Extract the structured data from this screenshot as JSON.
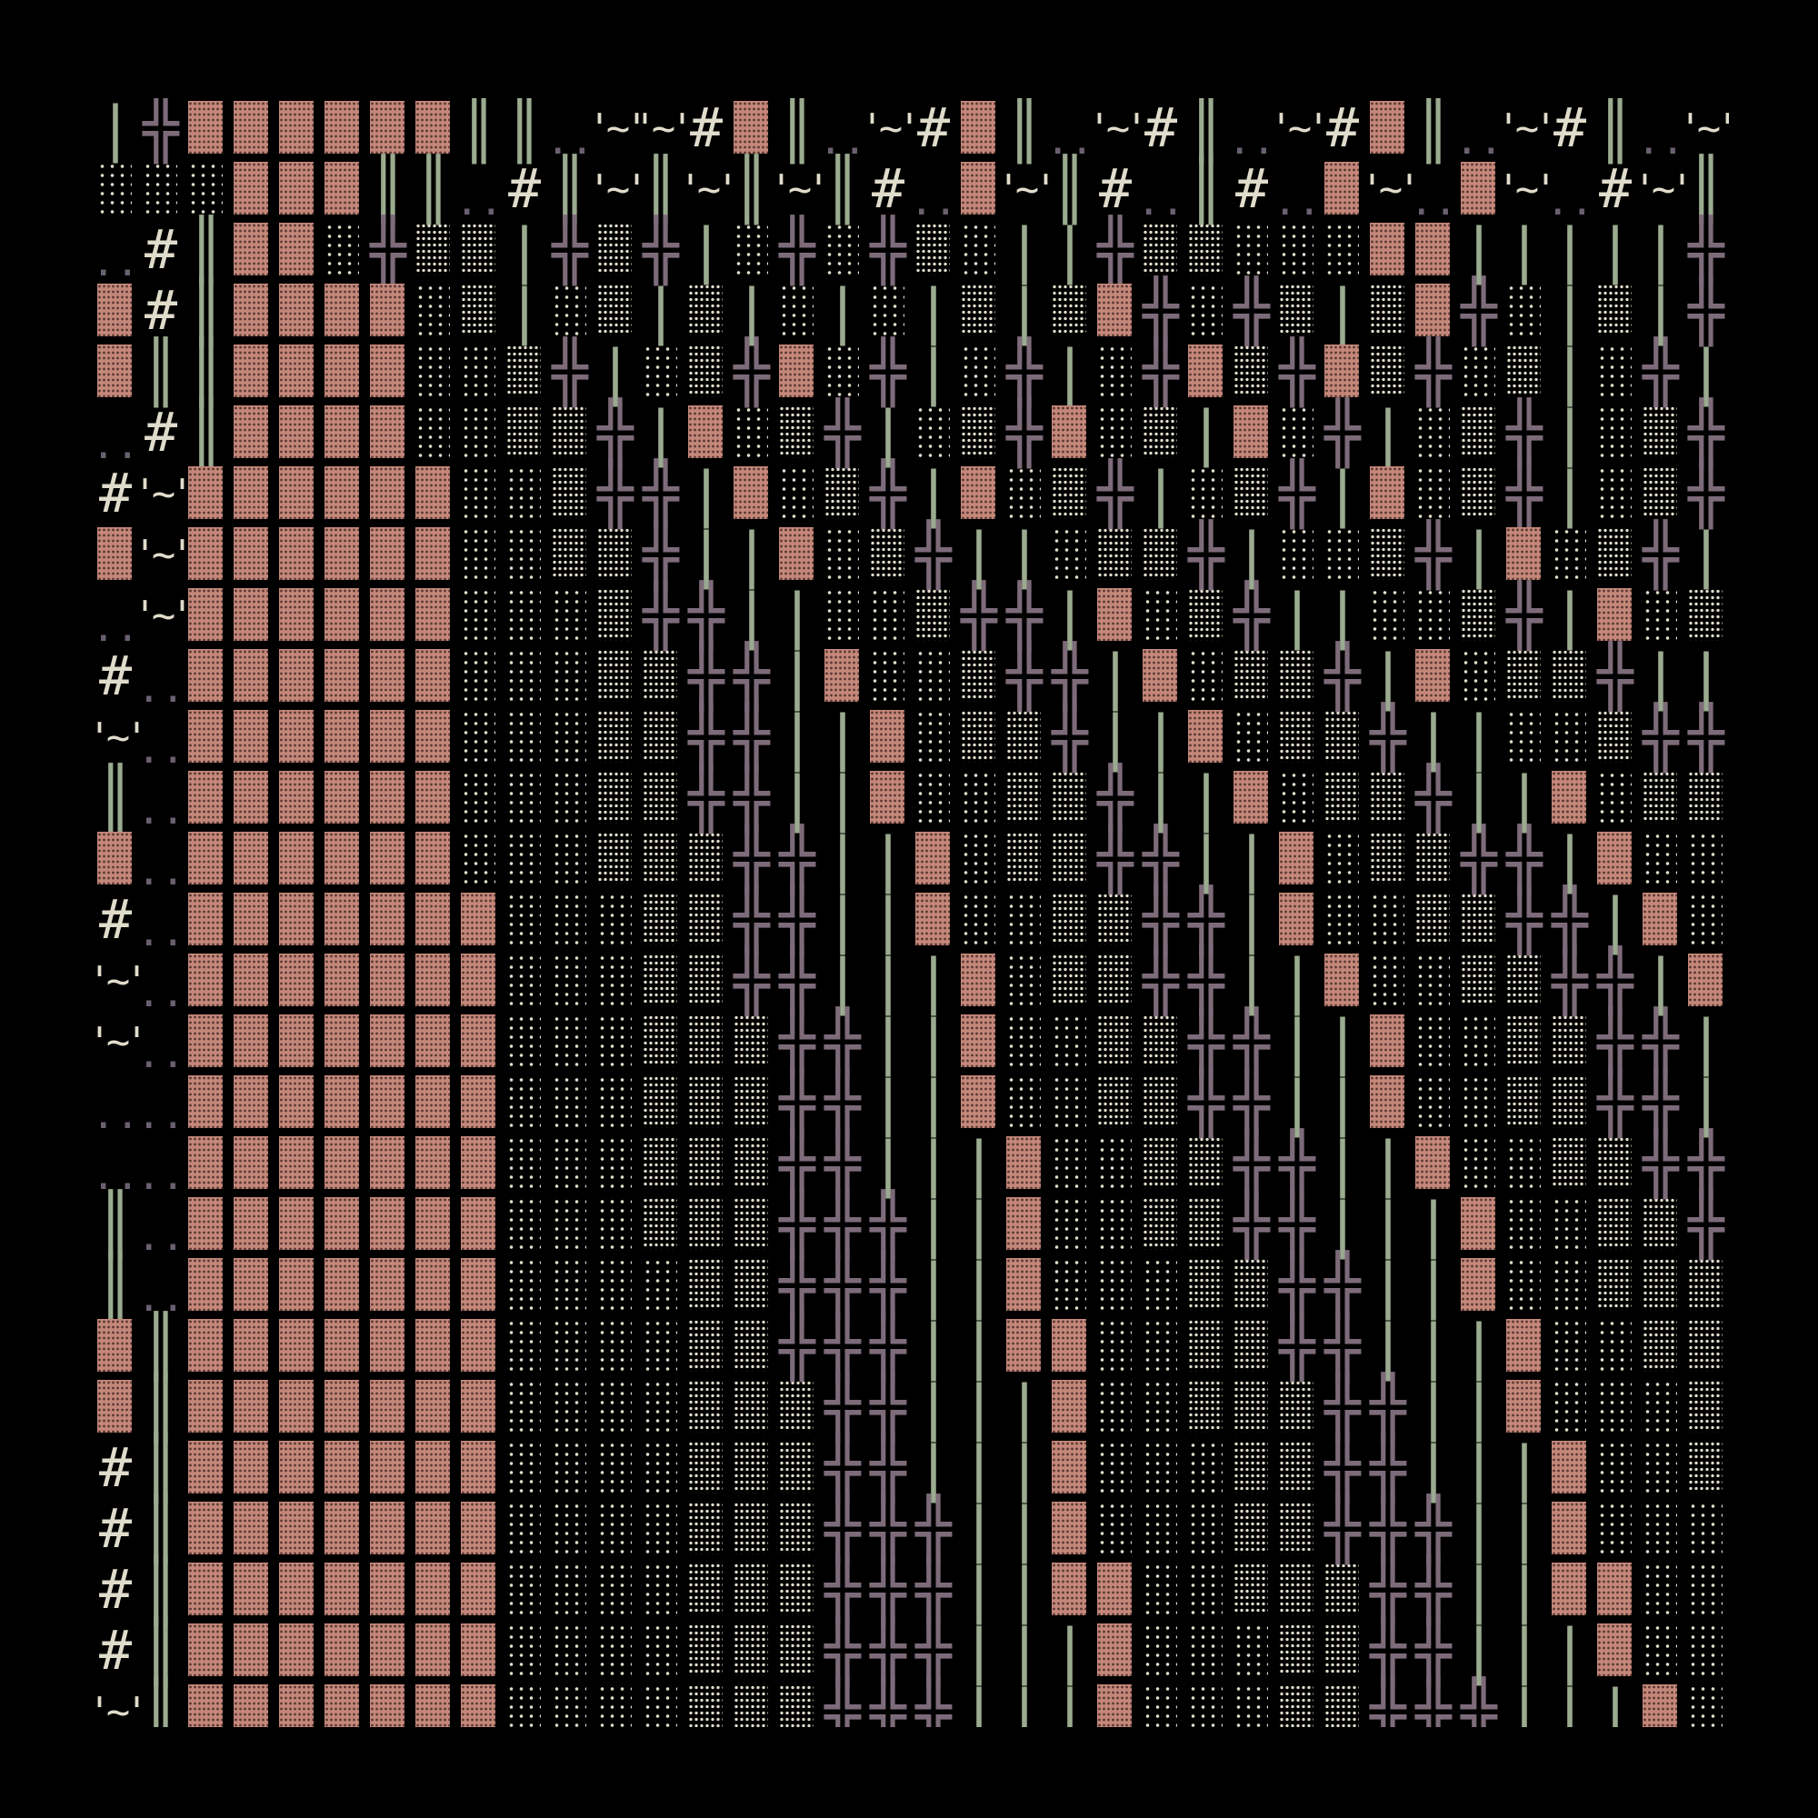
{
  "palette": {
    "background": "#000000",
    "salmon": "#c4877a",
    "green": "#9aab8f",
    "mauve": "#7d6b7a",
    "cream": "#e0dccb",
    "gray": "#6a6070"
  },
  "glyphs": {
    "S": "▓",
    "L": "░",
    "M": "▒",
    "X": "╬",
    "H": "║",
    "P": "|",
    "D": "..",
    "T": "'~'",
    "G": "#",
    "_": ""
  },
  "rows": [
    "PXSSSSSSHHDTTGSHDTGSHDTGHDTGSHDTGHDT",
    "LLLSSSHHDGHTHTHTHGDSTHGDHGDSTDSTDGTH",
    "DGHSSLXMMPXMXPLXLXMLPPXMMLLLSSPPPPPX",
    "SGHSSSSLMPLMPMPLPLPMPMSXLXMPMSXLPMPX",
    "SHHSSSSLLMXPLMXSLXPLXPLXSMXSMXLMPLXP",
    "DGHSSSSLLMMXPSLMXPLMXSLMPSLXPLMXPLMX",
    "GTSSSSSSLLMXXPSLMXPSLMXPLMXPSLMXPLMX",
    "STSSSSSSLLMMXPPSLMXPPLMMXPLLMXPSLMXP",
    "DTSSSSSSLLLMXXPPLLMXXPSLMXPPLLMXPSLM",
    "GDSSSSSSLLLMMXXPSLLMXXPSLMMXPSLMMXPP",
    "TDSSSSSSLLLMMXXPPSLMMXPPSLMMXPPLLMXX",
    "HDSSSSSSLLLMMXXPPSLLMMXPPSLMMXPPSLMM",
    "SDSSSSSSLLLMMMXXPPSLMMXXPPSLMMXXPSLL",
    "GDSSSSSSSLLLMMXXPPSLLMMXXPSLLMMXXPSL",
    "TDSSSSSSSLLLMMXXPPPSLMMXXPPSLLMMXXPS",
    "TDSSSSSSSLLLMMMXXPPSLLMMXXPPSLLMMXXP",
    "DDSSSSSSSLLLMMMXXPPSLLMMXXPPSLLMMXXP",
    "DDSSSSSSSLLLMMMXXPPPSLLMMXXPPSLLMMXX",
    "HDSSSSSSSLLLMMMXXXPPSLLMMXXPPPSLLMMX",
    "HDSSSSSSSLLLLMMXXXPPSLLLMMXXPPSLLMMM",
    "SHSSSSSSSLLLLMMXXXPPSSLLMMXXPPPSLLMM",
    "SHSSSSSSSLLLLMMMXXPPPSLLMMMXXPPSLLLM",
    "GHSSSSSSSLLLLMMMXXPPPSLLLMMXXPPPSLLM",
    "GHSSSSSSSLLLLMMMXXXPPSLLLMMXXXPPSLLL",
    "GHSSSSSSSLLLLMMMXXXPPSSLLMMMXXPPSSLL",
    "GHSSSSSSSLLLLMMMXXXPPPSLLLMMXXPPPSLL",
    "THSSSSSSSLLLLMMMXXXPPPSLLLMMXXXPPPSL"
  ]
}
